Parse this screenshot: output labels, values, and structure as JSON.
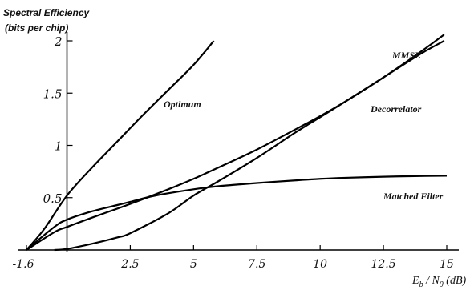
{
  "chart_data": {
    "type": "line",
    "title": "",
    "ylabel_lines": [
      "Spectral Efficiency",
      "(bits per chip)"
    ],
    "xlabel": "Eb/N0 (dB)",
    "xlabel_parts": {
      "e": "E",
      "b": "b",
      "slash": " / N",
      "zero": "0",
      "unit": " (dB)"
    },
    "xlim": [
      -1.6,
      15
    ],
    "ylim": [
      0,
      2.1
    ],
    "x_ticks": [
      {
        "v": -1.6,
        "label": "-1.6"
      },
      {
        "v": 2.5,
        "label": "2.5"
      },
      {
        "v": 5,
        "label": "5"
      },
      {
        "v": 7.5,
        "label": "7.5"
      },
      {
        "v": 10,
        "label": "10"
      },
      {
        "v": 12.5,
        "label": "12.5"
      },
      {
        "v": 15,
        "label": "15"
      }
    ],
    "y_ticks": [
      {
        "v": 0.5,
        "label": "0.5"
      },
      {
        "v": 1,
        "label": "1"
      },
      {
        "v": 1.5,
        "label": "1.5"
      },
      {
        "v": 2,
        "label": "2"
      }
    ],
    "grid": false,
    "series": [
      {
        "name": "Optimum",
        "x": [
          -1.6,
          -0.9,
          0,
          1,
          2,
          3,
          4,
          5,
          5.8
        ],
        "y": [
          0,
          0.2,
          0.52,
          0.79,
          1.04,
          1.29,
          1.53,
          1.77,
          2.0
        ]
      },
      {
        "name": "MMSE",
        "x": [
          -1.6,
          -0.5,
          0,
          1,
          2.5,
          4,
          5,
          6,
          7.5,
          9,
          10,
          11,
          12.5,
          14,
          14.9
        ],
        "y": [
          0,
          0.17,
          0.22,
          0.31,
          0.44,
          0.58,
          0.68,
          0.79,
          0.96,
          1.15,
          1.28,
          1.42,
          1.65,
          1.9,
          2.06
        ]
      },
      {
        "name": "Decorrelator",
        "x": [
          -0.5,
          0,
          1,
          2,
          2.5,
          4,
          5,
          6,
          7.5,
          9,
          10,
          11,
          12.5,
          14,
          14.9
        ],
        "y": [
          0,
          0.01,
          0.06,
          0.12,
          0.16,
          0.35,
          0.52,
          0.66,
          0.88,
          1.12,
          1.27,
          1.42,
          1.65,
          1.88,
          2.0
        ]
      },
      {
        "name": "Matched Filter",
        "x": [
          -1.6,
          -0.5,
          0,
          1,
          2,
          2.5,
          3.5,
          5,
          6,
          7.5,
          9,
          10,
          11,
          12.5,
          13.5,
          15
        ],
        "y": [
          0,
          0.22,
          0.29,
          0.37,
          0.43,
          0.46,
          0.52,
          0.58,
          0.61,
          0.64,
          0.665,
          0.68,
          0.69,
          0.7,
          0.705,
          0.71
        ]
      }
    ]
  }
}
